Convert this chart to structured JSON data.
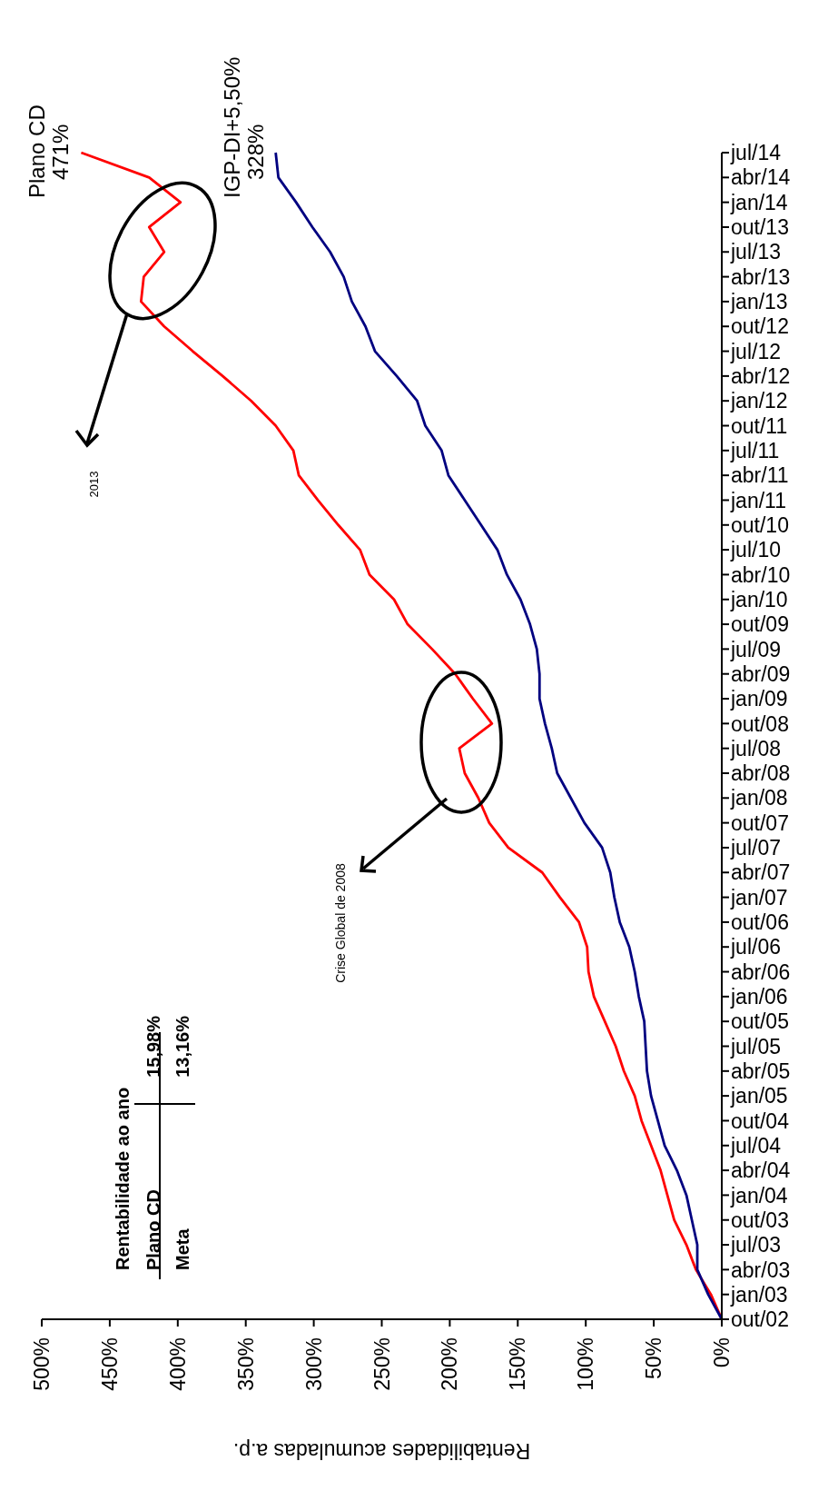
{
  "chart_data": {
    "type": "line",
    "orientation": "horizontal",
    "xlabel": "Rentabilidades acumuladas a.p.",
    "categories": [
      "jul/14",
      "abr/14",
      "jan/14",
      "out/13",
      "jul/13",
      "abr/13",
      "jan/13",
      "out/12",
      "jul/12",
      "abr/12",
      "jan/12",
      "out/11",
      "jul/11",
      "abr/11",
      "jan/11",
      "out/10",
      "jul/10",
      "abr/10",
      "jan/10",
      "out/09",
      "jul/09",
      "abr/09",
      "jan/09",
      "out/08",
      "jul/08",
      "abr/08",
      "jan/08",
      "out/07",
      "jul/07",
      "abr/07",
      "jan/07",
      "out/06",
      "jul/06",
      "abr/06",
      "jan/06",
      "out/05",
      "jul/05",
      "abr/05",
      "jan/05",
      "out/04",
      "jul/04",
      "abr/04",
      "jan/04",
      "out/03",
      "jul/03",
      "abr/03",
      "jan/03",
      "out/02"
    ],
    "series": [
      {
        "name": "Plano CD",
        "color": "#ff0000",
        "values": [
          471,
          421,
          398,
          421,
          410,
          425,
          427,
          410,
          389,
          367,
          346,
          328,
          315,
          311,
          297,
          282,
          266,
          259,
          241,
          231,
          213,
          196,
          183,
          169,
          193,
          189,
          179,
          171,
          157,
          132,
          119,
          105,
          99,
          98,
          94,
          86,
          78,
          72,
          64,
          59,
          52,
          45,
          40,
          35,
          26,
          19,
          8,
          0
        ],
        "value_labels": [
          "471%",
          null,
          null,
          null,
          null,
          null,
          null,
          null,
          null,
          null,
          null,
          null,
          null,
          null,
          null,
          null,
          null,
          null,
          null,
          null,
          null,
          null,
          null,
          null,
          null,
          null,
          null,
          null,
          null,
          null,
          null,
          null,
          null,
          null,
          null,
          null,
          null,
          null,
          null,
          null,
          null,
          null,
          null,
          null,
          null,
          null,
          null,
          null
        ]
      },
      {
        "name": "IGP-DI+5,50%",
        "color": "#000080",
        "values": [
          328,
          326,
          313,
          301,
          288,
          278,
          272,
          262,
          255,
          239,
          224,
          218,
          206,
          201,
          189,
          177,
          165,
          158,
          148,
          141,
          136,
          134,
          134,
          130,
          125,
          121,
          111,
          101,
          88,
          82,
          79,
          75,
          68,
          64,
          61,
          57,
          56,
          55,
          52,
          47,
          42,
          33,
          26,
          22,
          18,
          18,
          10,
          0
        ],
        "value_labels": [
          "328%",
          null,
          null,
          null,
          null,
          null,
          null,
          null,
          null,
          null,
          null,
          null,
          null,
          null,
          null,
          null,
          null,
          null,
          null,
          null,
          null,
          null,
          null,
          null,
          null,
          null,
          null,
          null,
          null,
          null,
          null,
          null,
          null,
          null,
          null,
          null,
          null,
          null,
          null,
          null,
          null,
          null,
          null,
          null,
          null,
          null,
          null,
          null
        ]
      }
    ],
    "xlim": [
      500,
      0
    ],
    "xticks": [
      {
        "value": 0,
        "label": "0%"
      },
      {
        "value": 50,
        "label": "50%"
      },
      {
        "value": 100,
        "label": "100%"
      },
      {
        "value": 150,
        "label": "150%"
      },
      {
        "value": 200,
        "label": "200%"
      },
      {
        "value": 250,
        "label": "250%"
      },
      {
        "value": 300,
        "label": "300%"
      },
      {
        "value": 350,
        "label": "350%"
      },
      {
        "value": 400,
        "label": "400%"
      },
      {
        "value": 450,
        "label": "450%"
      },
      {
        "value": 500,
        "label": "500%"
      }
    ],
    "annotations": [
      "2013",
      "Crise Global de 2008",
      "Rentabilidade ao ano",
      "Plano CD",
      "15,98%",
      "Meta",
      "13,16%"
    ]
  }
}
